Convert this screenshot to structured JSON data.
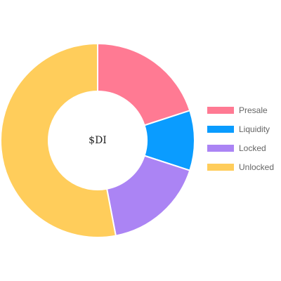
{
  "chart_data": {
    "type": "doughnut",
    "center_label": "$DI",
    "legend_position": "right",
    "categories": [
      "Presale",
      "Liquidity",
      "Locked",
      "Unlocked"
    ],
    "values": [
      20,
      10,
      17,
      53
    ],
    "colors": [
      "#ff7a93",
      "#0a9cff",
      "#ab84f4",
      "#ffcd5b"
    ]
  }
}
